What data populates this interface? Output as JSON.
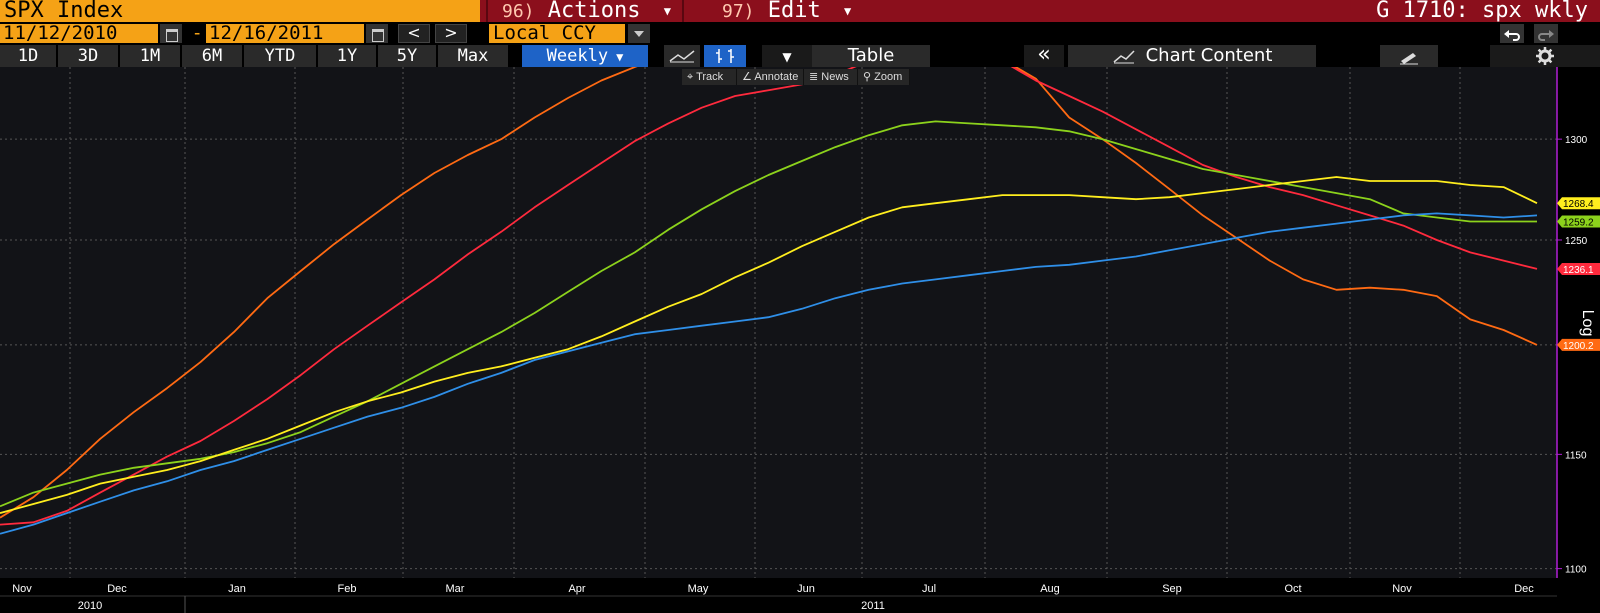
{
  "header": {
    "security": "SPX Index",
    "actions": {
      "num": "96)",
      "label": "Actions"
    },
    "edit": {
      "num": "97)",
      "label": "Edit"
    },
    "title": "G 1710: spx wkly"
  },
  "dates": {
    "start": "11/12/2010",
    "separator": "-",
    "end": "12/16/2011"
  },
  "nav": {
    "prev": "<",
    "next": ">"
  },
  "currency": "Local CCY",
  "ranges": [
    "1D",
    "3D",
    "1M",
    "6M",
    "YTD",
    "1Y",
    "5Y",
    "Max"
  ],
  "frequency": "Weekly",
  "table_label": "Table",
  "collapse_label": "«",
  "chart_content_label": "Chart Content",
  "chart_tools": [
    "Track",
    "Annotate",
    "News",
    "Zoom"
  ],
  "colors": {
    "orange": "#ff6a13",
    "red": "#ff2a3d",
    "green": "#8cd21c",
    "yellow": "#ffee1e",
    "blue": "#2f8fe8",
    "grid": "#555555",
    "axis": "#b01fd6"
  },
  "chart_data": {
    "type": "line",
    "scale": "log",
    "x_axis": {
      "months": [
        "Nov",
        "Dec",
        "Jan",
        "Feb",
        "Mar",
        "Apr",
        "May",
        "Jun",
        "Jul",
        "Aug",
        "Sep",
        "Oct",
        "Nov",
        "Dec"
      ],
      "years": [
        "2010",
        "2011"
      ]
    },
    "y_axis": {
      "label": "Log",
      "ticks": [
        1100,
        1150,
        1200,
        1250,
        1300
      ],
      "range": [
        1096,
        1337
      ],
      "position": "right"
    },
    "grid": true,
    "last_values": [
      {
        "series": "orange",
        "label": "1200.2"
      },
      {
        "series": "red",
        "label": "1236.1"
      },
      {
        "series": "green",
        "label": "1259.2"
      },
      {
        "series": "yellow",
        "label": "1268.4"
      }
    ],
    "series": [
      {
        "color_key": "orange",
        "values": [
          1122,
          1131,
          1143,
          1157,
          1169,
          1180,
          1192,
          1206,
          1222,
          1235,
          1248,
          1260,
          1272,
          1283,
          1292,
          1300,
          1311,
          1321,
          1330,
          1337,
          1343,
          1346,
          1347,
          1345,
          1343,
          1339,
          1342,
          1342,
          1342,
          1343,
          1341,
          1331,
          1311,
          1300,
          1288,
          1275,
          1262,
          1251,
          1240,
          1231,
          1226,
          1227,
          1226,
          1223,
          1212,
          1207,
          1200
        ]
      },
      {
        "color_key": "red",
        "values": [
          1119,
          1120,
          1125,
          1133,
          1141,
          1149,
          1156,
          1165,
          1175,
          1186,
          1198,
          1209,
          1220,
          1231,
          1243,
          1254,
          1266,
          1277,
          1288,
          1299,
          1308,
          1316,
          1322,
          1325,
          1328,
          1333,
          1340,
          1343,
          1347,
          1346,
          1340,
          1330,
          1322,
          1314,
          1305,
          1296,
          1287,
          1281,
          1276,
          1272,
          1267,
          1262,
          1257,
          1250,
          1244,
          1240,
          1236
        ]
      },
      {
        "color_key": "green",
        "values": [
          1127,
          1133,
          1137,
          1141,
          1144,
          1146,
          1148,
          1151,
          1155,
          1160,
          1167,
          1174,
          1182,
          1190,
          1198,
          1206,
          1215,
          1225,
          1235,
          1244,
          1255,
          1265,
          1274,
          1282,
          1289,
          1296,
          1302,
          1307,
          1309,
          1308,
          1307,
          1306,
          1304,
          1300,
          1295,
          1290,
          1285,
          1282,
          1279,
          1276,
          1273,
          1270,
          1263,
          1261,
          1259,
          1259,
          1259
        ]
      },
      {
        "color_key": "yellow",
        "values": [
          1124,
          1128,
          1132,
          1137,
          1140,
          1143,
          1147,
          1152,
          1157,
          1163,
          1169,
          1174,
          1178,
          1183,
          1187,
          1190,
          1194,
          1198,
          1204,
          1211,
          1218,
          1224,
          1232,
          1239,
          1247,
          1254,
          1261,
          1266,
          1268,
          1270,
          1272,
          1272,
          1272,
          1271,
          1270,
          1271,
          1273,
          1275,
          1277,
          1279,
          1281,
          1279,
          1279,
          1279,
          1277,
          1276,
          1268
        ]
      },
      {
        "color_key": "blue",
        "values": [
          1115,
          1119,
          1124,
          1129,
          1134,
          1138,
          1143,
          1147,
          1152,
          1157,
          1162,
          1167,
          1171,
          1176,
          1182,
          1187,
          1193,
          1197,
          1201,
          1205,
          1207,
          1209,
          1211,
          1213,
          1217,
          1222,
          1226,
          1229,
          1231,
          1233,
          1235,
          1237,
          1238,
          1240,
          1242,
          1245,
          1248,
          1251,
          1254,
          1256,
          1258,
          1260,
          1262,
          1263,
          1262,
          1261,
          1262
        ]
      }
    ]
  }
}
